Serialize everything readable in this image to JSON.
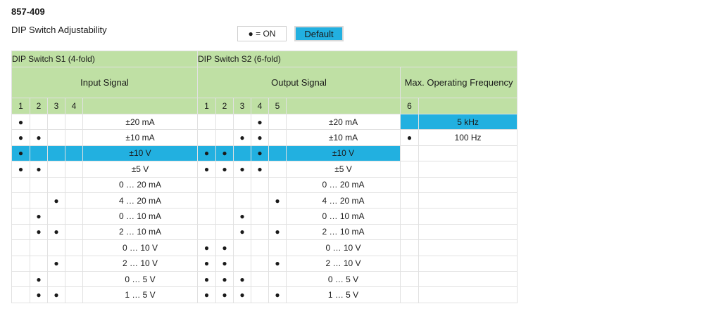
{
  "header": {
    "product_id": "857-409",
    "subtitle": "DIP Switch Adjustability",
    "legend_on": "● = ON",
    "default_label": "Default"
  },
  "table": {
    "s1_title": "DIP Switch S1 (4-fold)",
    "s2_title": "DIP Switch S2 (6-fold)",
    "input_signal": "Input Signal",
    "output_signal": "Output Signal",
    "max_freq": "Max. Operating Frequency",
    "s1_numbers": [
      "1",
      "2",
      "3",
      "4"
    ],
    "s2_numbers": [
      "1",
      "2",
      "3",
      "4",
      "5"
    ],
    "s2_freq_number": "6",
    "dot": "●",
    "freq_values": [
      "5 kHz",
      "100 Hz"
    ],
    "rows": [
      {
        "s1": [
          1,
          0,
          0,
          0
        ],
        "input": "±20 mA",
        "s2": [
          0,
          0,
          0,
          1,
          0
        ],
        "output": "±20 mA"
      },
      {
        "s1": [
          1,
          1,
          0,
          0
        ],
        "input": "±10 mA",
        "s2": [
          0,
          0,
          1,
          1,
          0
        ],
        "output": "±10 mA"
      },
      {
        "s1": [
          1,
          0,
          0,
          0
        ],
        "input": "±10 V",
        "s2": [
          1,
          1,
          0,
          1,
          0
        ],
        "output": "±10 V"
      },
      {
        "s1": [
          1,
          1,
          0,
          0
        ],
        "input": "±5 V",
        "s2": [
          1,
          1,
          1,
          1,
          0
        ],
        "output": "±5 V"
      },
      {
        "s1": [
          0,
          0,
          0,
          0
        ],
        "input": "0 … 20 mA",
        "s2": [
          0,
          0,
          0,
          0,
          0
        ],
        "output": "0 … 20 mA"
      },
      {
        "s1": [
          0,
          0,
          1,
          0
        ],
        "input": "4 … 20 mA",
        "s2": [
          0,
          0,
          0,
          0,
          1
        ],
        "output": "4 … 20 mA"
      },
      {
        "s1": [
          0,
          1,
          0,
          0
        ],
        "input": "0 … 10 mA",
        "s2": [
          0,
          0,
          1,
          0,
          0
        ],
        "output": "0 … 10 mA"
      },
      {
        "s1": [
          0,
          1,
          1,
          0
        ],
        "input": "2 … 10 mA",
        "s2": [
          0,
          0,
          1,
          0,
          1
        ],
        "output": "2 … 10 mA"
      },
      {
        "s1": [
          0,
          0,
          0,
          0
        ],
        "input": "0 … 10 V",
        "s2": [
          1,
          1,
          0,
          0,
          0
        ],
        "output": "0 … 10 V"
      },
      {
        "s1": [
          0,
          0,
          1,
          0
        ],
        "input": "2 … 10 V",
        "s2": [
          1,
          1,
          0,
          0,
          1
        ],
        "output": "2 … 10 V"
      },
      {
        "s1": [
          0,
          1,
          0,
          0
        ],
        "input": "0 … 5 V",
        "s2": [
          1,
          1,
          1,
          0,
          0
        ],
        "output": "0 … 5 V"
      },
      {
        "s1": [
          0,
          1,
          1,
          0
        ],
        "input": "1 … 5 V",
        "s2": [
          1,
          1,
          1,
          0,
          1
        ],
        "output": "1 … 5 V"
      }
    ],
    "highlight_row": 2,
    "freq_rows": [
      {
        "s6": 0,
        "value": "5 kHz",
        "highlight": true
      },
      {
        "s6": 1,
        "value": "100 Hz",
        "highlight": false
      }
    ]
  }
}
